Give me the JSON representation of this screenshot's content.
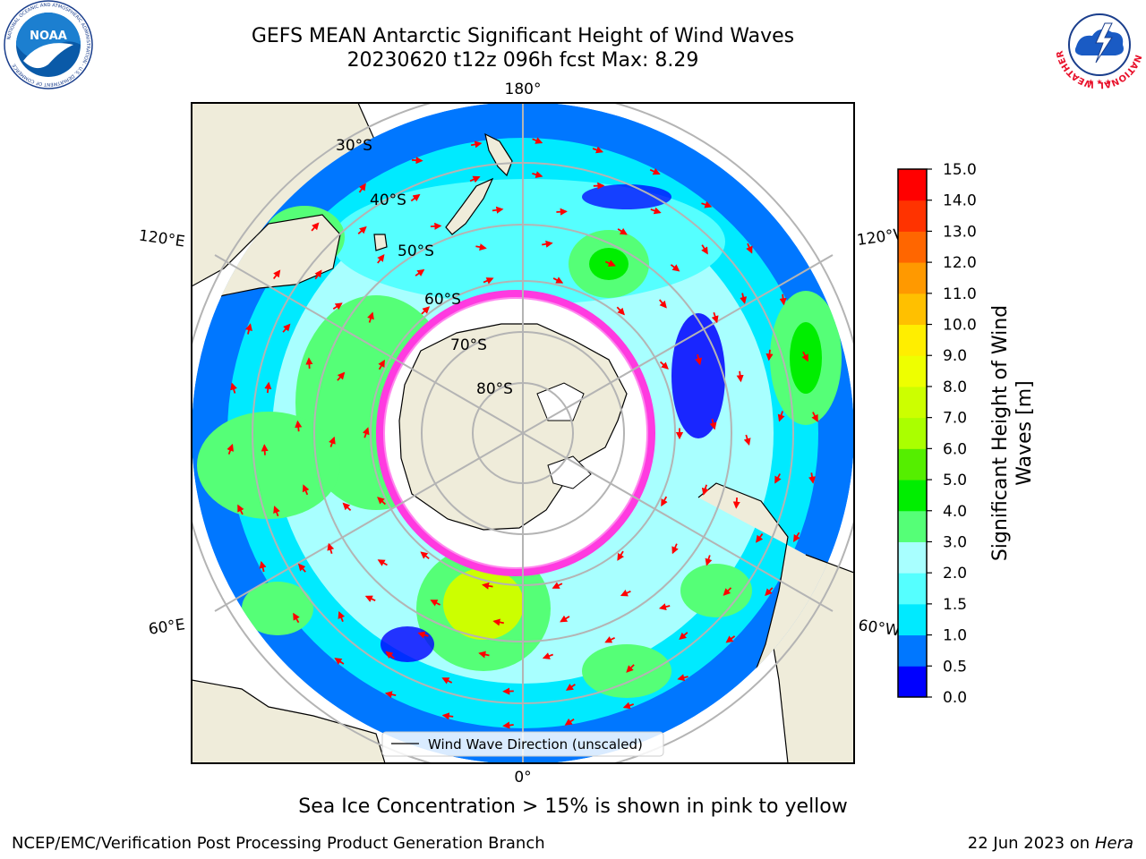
{
  "title": {
    "line1": "GEFS MEAN Antarctic Significant Height of Wind Waves",
    "line2": "20230620 t12z 096h fcst   Max: 8.29"
  },
  "logos": {
    "noaa_text": "NOAA",
    "noaa_ring": "NATIONAL OCEANIC AND ATMOSPHERIC ADMINISTRATION · U.S. DEPARTMENT OF COMMERCE",
    "nws_ring": "NATIONAL WEATHER SERVICE"
  },
  "map": {
    "projection": "south-polar-stereographic",
    "longitude_labels": {
      "top": "180°",
      "bottom": "0°",
      "upper_left": "120°E",
      "upper_right": "120°W",
      "lower_left": "60°E",
      "lower_right": "60°W"
    },
    "latitude_labels": [
      "30°S",
      "40°S",
      "50°S",
      "60°S",
      "70°S",
      "80°S"
    ],
    "legend_label": "Wind Wave Direction (unscaled)"
  },
  "colorbar": {
    "label_line1": "Significant Height of Wind",
    "label_line2": "Waves [m]",
    "ticks": [
      "0.0",
      "0.5",
      "1.0",
      "1.5",
      "2.0",
      "3.0",
      "4.0",
      "5.0",
      "6.0",
      "7.0",
      "8.0",
      "9.0",
      "10.0",
      "11.0",
      "12.0",
      "13.0",
      "14.0",
      "15.0"
    ],
    "colors": [
      "#0000ff",
      "#0077ff",
      "#00eaff",
      "#55ffff",
      "#a8ffff",
      "#55ff77",
      "#00ee00",
      "#55ee00",
      "#aaff00",
      "#ccff00",
      "#eeff00",
      "#ffee00",
      "#ffc000",
      "#ff9900",
      "#ff6600",
      "#ff3300",
      "#ff0000"
    ]
  },
  "sea_ice_note": "Sea Ice Concentration > 15% is shown in pink to yellow",
  "footer": {
    "left": "NCEP/EMC/Verification Post Processing Product Generation Branch",
    "right_date": "22 Jun 2023 on",
    "right_machine": "Hera"
  }
}
